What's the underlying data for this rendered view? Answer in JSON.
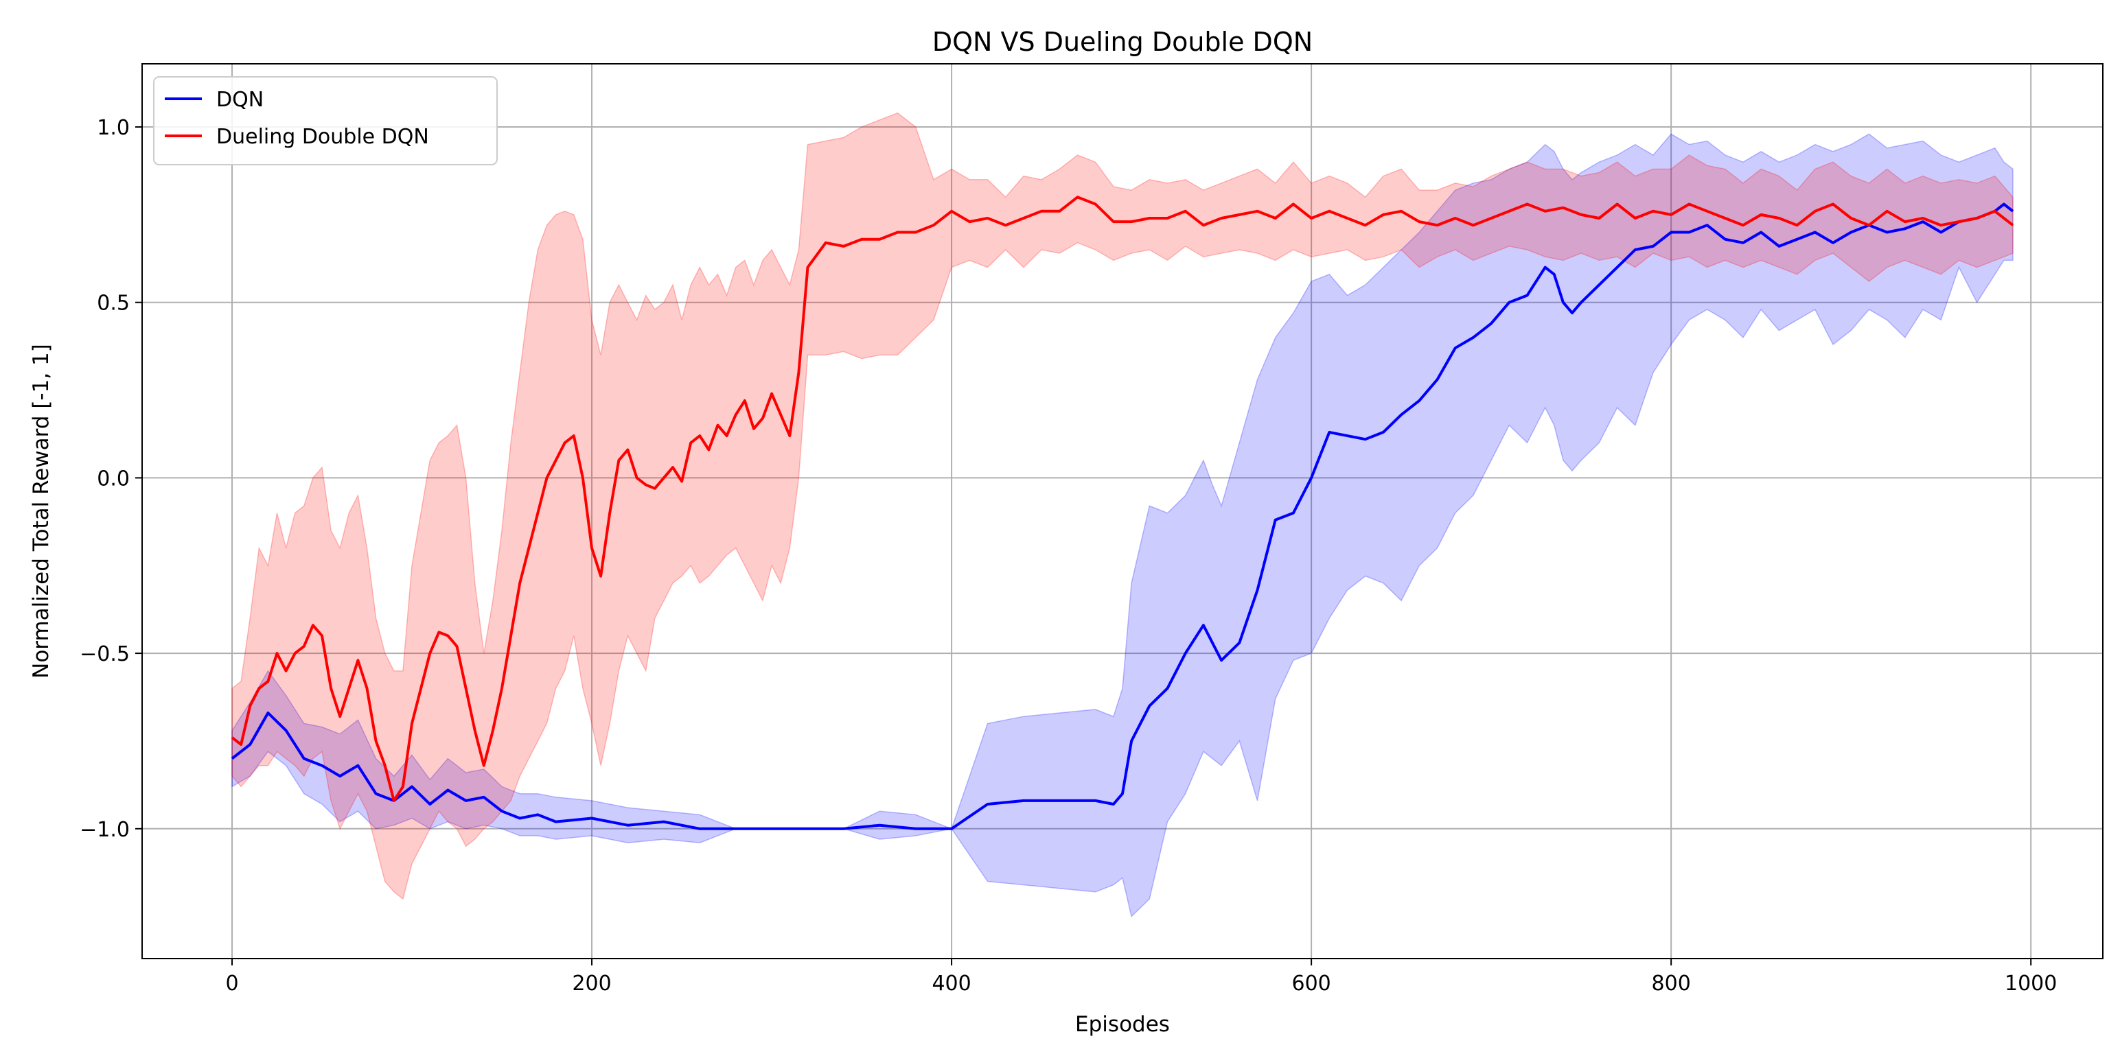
{
  "chart_data": {
    "type": "line",
    "title": "DQN VS Dueling Double DQN",
    "xlabel": "Episodes",
    "ylabel": "Normalized Total Reward [-1, 1]",
    "xlim": [
      -50,
      1040
    ],
    "ylim": [
      -1.37,
      1.18
    ],
    "xticks": [
      0,
      200,
      400,
      600,
      800,
      1000
    ],
    "yticks": [
      -1.0,
      -0.5,
      0.0,
      0.5,
      1.0
    ],
    "xtick_labels": [
      "0",
      "200",
      "400",
      "600",
      "800",
      "1000"
    ],
    "ytick_labels": [
      "−1.0",
      "−0.5",
      "0.0",
      "0.5",
      "1.0"
    ],
    "grid": true,
    "legend_position": "top-left",
    "series": [
      {
        "name": "DQN",
        "color": "#0000ff",
        "fill_color": "#0000ff",
        "x": [
          0,
          10,
          20,
          30,
          40,
          50,
          60,
          70,
          80,
          90,
          100,
          110,
          120,
          130,
          140,
          150,
          160,
          170,
          180,
          200,
          220,
          240,
          260,
          280,
          300,
          320,
          340,
          360,
          380,
          400,
          420,
          440,
          460,
          480,
          490,
          495,
          500,
          510,
          520,
          530,
          540,
          545,
          550,
          560,
          570,
          580,
          590,
          600,
          610,
          620,
          630,
          640,
          650,
          660,
          670,
          680,
          690,
          700,
          710,
          720,
          730,
          735,
          740,
          745,
          750,
          760,
          770,
          780,
          790,
          800,
          810,
          820,
          830,
          840,
          850,
          860,
          870,
          880,
          890,
          900,
          910,
          920,
          930,
          940,
          950,
          960,
          970,
          980,
          985,
          990
        ],
        "y": [
          -0.8,
          -0.76,
          -0.67,
          -0.72,
          -0.8,
          -0.82,
          -0.85,
          -0.82,
          -0.9,
          -0.92,
          -0.88,
          -0.93,
          -0.89,
          -0.92,
          -0.91,
          -0.95,
          -0.97,
          -0.96,
          -0.98,
          -0.97,
          -0.99,
          -0.98,
          -1.0,
          -1.0,
          -1.0,
          -1.0,
          -1.0,
          -0.99,
          -1.0,
          -1.0,
          -0.93,
          -0.92,
          -0.92,
          -0.92,
          -0.93,
          -0.9,
          -0.75,
          -0.65,
          -0.6,
          -0.5,
          -0.42,
          -0.47,
          -0.52,
          -0.47,
          -0.32,
          -0.12,
          -0.1,
          0.0,
          0.13,
          0.12,
          0.11,
          0.13,
          0.18,
          0.22,
          0.28,
          0.37,
          0.4,
          0.44,
          0.5,
          0.52,
          0.6,
          0.58,
          0.5,
          0.47,
          0.5,
          0.55,
          0.6,
          0.65,
          0.66,
          0.7,
          0.7,
          0.72,
          0.68,
          0.67,
          0.7,
          0.66,
          0.68,
          0.7,
          0.67,
          0.7,
          0.72,
          0.7,
          0.71,
          0.73,
          0.7,
          0.73,
          0.74,
          0.76,
          0.78,
          0.76
        ],
        "lower": [
          -0.88,
          -0.85,
          -0.78,
          -0.82,
          -0.9,
          -0.93,
          -0.98,
          -0.95,
          -1.0,
          -0.99,
          -0.97,
          -1.0,
          -0.98,
          -1.0,
          -0.99,
          -1.0,
          -1.02,
          -1.02,
          -1.03,
          -1.02,
          -1.04,
          -1.03,
          -1.04,
          -1.0,
          -1.0,
          -1.0,
          -1.0,
          -1.03,
          -1.02,
          -1.0,
          -1.15,
          -1.16,
          -1.17,
          -1.18,
          -1.16,
          -1.14,
          -1.25,
          -1.2,
          -0.98,
          -0.9,
          -0.78,
          -0.8,
          -0.82,
          -0.75,
          -0.92,
          -0.63,
          -0.52,
          -0.5,
          -0.4,
          -0.32,
          -0.28,
          -0.3,
          -0.35,
          -0.25,
          -0.2,
          -0.1,
          -0.05,
          0.05,
          0.15,
          0.1,
          0.2,
          0.15,
          0.05,
          0.02,
          0.05,
          0.1,
          0.2,
          0.15,
          0.3,
          0.38,
          0.45,
          0.48,
          0.45,
          0.4,
          0.48,
          0.42,
          0.45,
          0.48,
          0.38,
          0.42,
          0.48,
          0.45,
          0.4,
          0.48,
          0.45,
          0.6,
          0.5,
          0.58,
          0.62,
          0.62
        ],
        "upper": [
          -0.72,
          -0.64,
          -0.55,
          -0.62,
          -0.7,
          -0.71,
          -0.73,
          -0.69,
          -0.8,
          -0.85,
          -0.79,
          -0.86,
          -0.8,
          -0.84,
          -0.83,
          -0.88,
          -0.9,
          -0.9,
          -0.91,
          -0.92,
          -0.94,
          -0.95,
          -0.96,
          -1.0,
          -1.0,
          -1.0,
          -1.0,
          -0.95,
          -0.96,
          -1.0,
          -0.7,
          -0.68,
          -0.67,
          -0.66,
          -0.68,
          -0.6,
          -0.3,
          -0.08,
          -0.1,
          -0.05,
          0.05,
          -0.02,
          -0.08,
          0.1,
          0.28,
          0.4,
          0.47,
          0.56,
          0.58,
          0.52,
          0.55,
          0.6,
          0.65,
          0.7,
          0.76,
          0.82,
          0.84,
          0.85,
          0.88,
          0.9,
          0.95,
          0.93,
          0.88,
          0.85,
          0.87,
          0.9,
          0.92,
          0.95,
          0.92,
          0.98,
          0.95,
          0.96,
          0.92,
          0.9,
          0.93,
          0.9,
          0.92,
          0.95,
          0.93,
          0.95,
          0.98,
          0.94,
          0.95,
          0.96,
          0.92,
          0.9,
          0.92,
          0.94,
          0.9,
          0.88
        ]
      },
      {
        "name": "Dueling Double DQN",
        "color": "#ff0000",
        "fill_color": "#ff0000",
        "x": [
          0,
          5,
          10,
          15,
          20,
          25,
          30,
          35,
          40,
          45,
          50,
          55,
          60,
          65,
          70,
          75,
          80,
          85,
          90,
          95,
          100,
          105,
          110,
          115,
          120,
          125,
          130,
          135,
          140,
          145,
          150,
          155,
          160,
          165,
          170,
          175,
          180,
          185,
          190,
          195,
          200,
          205,
          210,
          215,
          220,
          225,
          230,
          235,
          240,
          245,
          250,
          255,
          260,
          265,
          270,
          275,
          280,
          285,
          290,
          295,
          300,
          305,
          310,
          315,
          320,
          330,
          340,
          350,
          360,
          370,
          380,
          390,
          400,
          410,
          420,
          430,
          440,
          450,
          460,
          470,
          480,
          490,
          500,
          510,
          520,
          530,
          540,
          550,
          560,
          570,
          580,
          590,
          600,
          610,
          620,
          630,
          640,
          650,
          660,
          670,
          680,
          690,
          700,
          710,
          720,
          730,
          740,
          750,
          760,
          770,
          780,
          790,
          800,
          810,
          820,
          830,
          840,
          850,
          860,
          870,
          880,
          890,
          900,
          910,
          920,
          930,
          940,
          950,
          960,
          970,
          980,
          990
        ],
        "y": [
          -0.74,
          -0.76,
          -0.65,
          -0.6,
          -0.58,
          -0.5,
          -0.55,
          -0.5,
          -0.48,
          -0.42,
          -0.45,
          -0.6,
          -0.68,
          -0.6,
          -0.52,
          -0.6,
          -0.75,
          -0.82,
          -0.92,
          -0.88,
          -0.7,
          -0.6,
          -0.5,
          -0.44,
          -0.45,
          -0.48,
          -0.6,
          -0.72,
          -0.82,
          -0.72,
          -0.6,
          -0.45,
          -0.3,
          -0.2,
          -0.1,
          0.0,
          0.05,
          0.1,
          0.12,
          0.0,
          -0.2,
          -0.28,
          -0.1,
          0.05,
          0.08,
          0.0,
          -0.02,
          -0.03,
          0.0,
          0.03,
          -0.01,
          0.1,
          0.12,
          0.08,
          0.15,
          0.12,
          0.18,
          0.22,
          0.14,
          0.17,
          0.24,
          0.18,
          0.12,
          0.3,
          0.6,
          0.67,
          0.66,
          0.68,
          0.68,
          0.7,
          0.7,
          0.72,
          0.76,
          0.73,
          0.74,
          0.72,
          0.74,
          0.76,
          0.76,
          0.8,
          0.78,
          0.73,
          0.73,
          0.74,
          0.74,
          0.76,
          0.72,
          0.74,
          0.75,
          0.76,
          0.74,
          0.78,
          0.74,
          0.76,
          0.74,
          0.72,
          0.75,
          0.76,
          0.73,
          0.72,
          0.74,
          0.72,
          0.74,
          0.76,
          0.78,
          0.76,
          0.77,
          0.75,
          0.74,
          0.78,
          0.74,
          0.76,
          0.75,
          0.78,
          0.76,
          0.74,
          0.72,
          0.75,
          0.74,
          0.72,
          0.76,
          0.78,
          0.74,
          0.72,
          0.76,
          0.73,
          0.74,
          0.72,
          0.73,
          0.74,
          0.76,
          0.72
        ],
        "lower": [
          -0.85,
          -0.88,
          -0.85,
          -0.82,
          -0.82,
          -0.78,
          -0.8,
          -0.82,
          -0.85,
          -0.8,
          -0.78,
          -0.92,
          -1.0,
          -0.95,
          -0.9,
          -0.95,
          -1.05,
          -1.15,
          -1.18,
          -1.2,
          -1.1,
          -1.05,
          -1.0,
          -0.95,
          -0.98,
          -1.0,
          -1.05,
          -1.03,
          -1.0,
          -0.98,
          -0.95,
          -0.92,
          -0.85,
          -0.8,
          -0.75,
          -0.7,
          -0.6,
          -0.55,
          -0.45,
          -0.6,
          -0.7,
          -0.82,
          -0.7,
          -0.55,
          -0.45,
          -0.5,
          -0.55,
          -0.4,
          -0.35,
          -0.3,
          -0.28,
          -0.25,
          -0.3,
          -0.28,
          -0.25,
          -0.22,
          -0.2,
          -0.25,
          -0.3,
          -0.35,
          -0.25,
          -0.3,
          -0.2,
          0.0,
          0.35,
          0.35,
          0.36,
          0.34,
          0.35,
          0.35,
          0.4,
          0.45,
          0.6,
          0.62,
          0.6,
          0.65,
          0.6,
          0.65,
          0.64,
          0.67,
          0.65,
          0.62,
          0.64,
          0.65,
          0.62,
          0.66,
          0.63,
          0.64,
          0.65,
          0.64,
          0.62,
          0.65,
          0.63,
          0.64,
          0.65,
          0.62,
          0.63,
          0.65,
          0.6,
          0.63,
          0.65,
          0.62,
          0.64,
          0.66,
          0.65,
          0.63,
          0.62,
          0.64,
          0.62,
          0.63,
          0.6,
          0.64,
          0.62,
          0.63,
          0.6,
          0.62,
          0.6,
          0.62,
          0.6,
          0.58,
          0.62,
          0.64,
          0.6,
          0.56,
          0.6,
          0.62,
          0.6,
          0.58,
          0.62,
          0.6,
          0.62,
          0.64
        ],
        "upper": [
          -0.6,
          -0.58,
          -0.4,
          -0.2,
          -0.25,
          -0.1,
          -0.2,
          -0.1,
          -0.08,
          0.0,
          0.03,
          -0.15,
          -0.2,
          -0.1,
          -0.05,
          -0.2,
          -0.4,
          -0.5,
          -0.55,
          -0.55,
          -0.25,
          -0.1,
          0.05,
          0.1,
          0.12,
          0.15,
          0.0,
          -0.3,
          -0.5,
          -0.35,
          -0.15,
          0.1,
          0.3,
          0.5,
          0.65,
          0.72,
          0.75,
          0.76,
          0.75,
          0.68,
          0.45,
          0.35,
          0.5,
          0.55,
          0.5,
          0.45,
          0.52,
          0.48,
          0.5,
          0.55,
          0.45,
          0.55,
          0.6,
          0.55,
          0.58,
          0.52,
          0.6,
          0.62,
          0.55,
          0.62,
          0.65,
          0.6,
          0.55,
          0.65,
          0.95,
          0.96,
          0.97,
          1.0,
          1.02,
          1.04,
          1.0,
          0.85,
          0.88,
          0.85,
          0.85,
          0.8,
          0.86,
          0.85,
          0.88,
          0.92,
          0.9,
          0.83,
          0.82,
          0.85,
          0.84,
          0.85,
          0.82,
          0.84,
          0.86,
          0.88,
          0.84,
          0.9,
          0.84,
          0.86,
          0.84,
          0.8,
          0.86,
          0.88,
          0.82,
          0.82,
          0.84,
          0.83,
          0.86,
          0.88,
          0.9,
          0.88,
          0.88,
          0.86,
          0.87,
          0.9,
          0.86,
          0.88,
          0.88,
          0.92,
          0.89,
          0.88,
          0.84,
          0.88,
          0.86,
          0.82,
          0.88,
          0.9,
          0.86,
          0.84,
          0.88,
          0.84,
          0.86,
          0.84,
          0.85,
          0.84,
          0.86,
          0.8
        ]
      }
    ]
  }
}
